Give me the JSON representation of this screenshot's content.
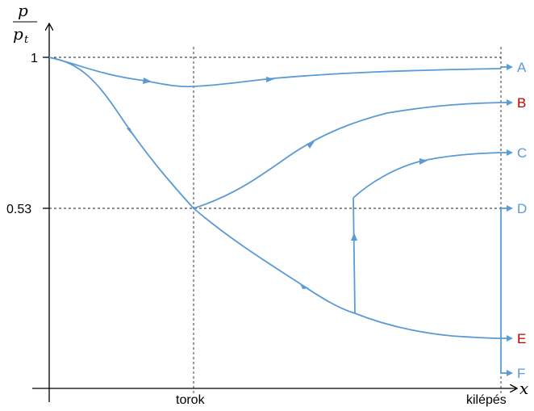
{
  "axes": {
    "y_label_num": "p",
    "y_label_den": "p",
    "y_label_den_sub": "t",
    "x_label": "x",
    "y_tick_1": "1",
    "y_tick_053": "0.53",
    "x_tick_throat": "torok",
    "x_tick_exit": "kilépés"
  },
  "cases": [
    {
      "label": "A",
      "color": "#5b9bd5"
    },
    {
      "label": "B",
      "color": "#c00000"
    },
    {
      "label": "C",
      "color": "#5b9bd5"
    },
    {
      "label": "D",
      "color": "#5b9bd5"
    },
    {
      "label": "E",
      "color": "#c00000"
    },
    {
      "label": "F",
      "color": "#5b9bd5"
    }
  ],
  "colors": {
    "curve": "#5b9bd5",
    "axis": "#000000"
  }
}
